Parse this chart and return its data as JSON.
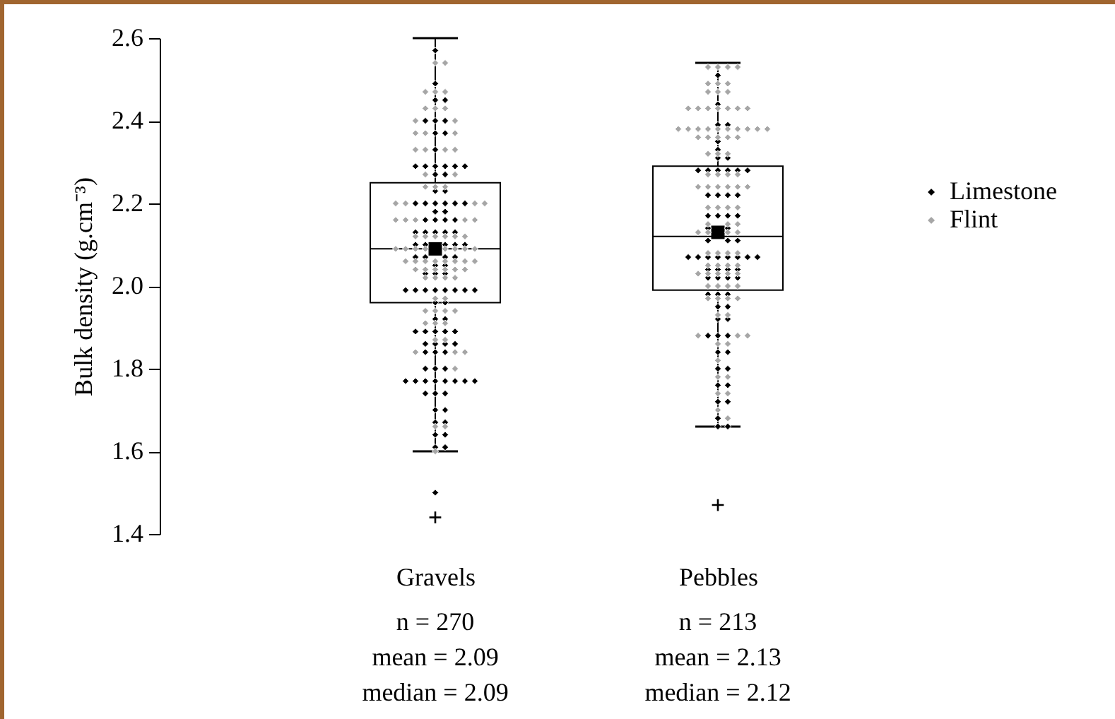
{
  "chart_data": {
    "type": "box",
    "ylabel": "Bulk density (g.cm⁻³)",
    "categories": [
      "Gravels",
      "Pebbles"
    ],
    "boxes": [
      {
        "low": 1.6,
        "q1": 1.96,
        "median": 2.09,
        "q3": 2.25,
        "high": 2.6,
        "mean": 2.09,
        "outliers": [
          1.44
        ]
      },
      {
        "low": 1.66,
        "q1": 1.99,
        "median": 2.12,
        "q3": 2.29,
        "high": 2.54,
        "mean": 2.13,
        "outliers": [
          1.47
        ]
      }
    ],
    "ylim": [
      1.4,
      2.6
    ],
    "yticks": [
      1.4,
      1.6,
      1.8,
      {
        "value": 2,
        "label": "2.0"
      },
      2.2,
      2.4,
      2.6
    ],
    "annotations": [
      "n = 270\nmean = 2.09\nmedian = 2.09",
      "n = 213\nmean = 2.13\nmedian = 2.12"
    ],
    "legend": "right",
    "marker": "diamond",
    "grid": false,
    "series": [
      {
        "name": "Limestone",
        "type": "scatter",
        "color": "#000000",
        "x": [
          "Gravels",
          "Gravels",
          "Gravels",
          "Gravels",
          "Gravels",
          "Gravels",
          "Gravels",
          "Gravels",
          "Gravels",
          "Gravels",
          "Gravels",
          "Gravels",
          "Gravels",
          "Gravels",
          "Gravels",
          "Gravels",
          "Gravels",
          "Gravels",
          "Gravels",
          "Gravels",
          "Gravels",
          "Gravels",
          "Gravels",
          "Gravels",
          "Gravels",
          "Gravels",
          "Gravels",
          "Gravels",
          "Gravels",
          "Gravels",
          "Gravels",
          "Gravels",
          "Gravels",
          "Gravels",
          "Gravels",
          "Gravels",
          "Gravels",
          "Gravels",
          "Gravels",
          "Gravels",
          "Gravels",
          "Gravels",
          "Gravels",
          "Gravels",
          "Gravels",
          "Gravels",
          "Gravels",
          "Gravels",
          "Gravels",
          "Gravels",
          "Gravels",
          "Gravels",
          "Gravels",
          "Gravels",
          "Gravels",
          "Gravels",
          "Gravels",
          "Gravels",
          "Gravels",
          "Gravels",
          "Gravels",
          "Gravels",
          "Gravels",
          "Gravels",
          "Gravels",
          "Gravels",
          "Gravels",
          "Gravels",
          "Gravels",
          "Gravels",
          "Gravels",
          "Gravels",
          "Gravels",
          "Gravels",
          "Gravels",
          "Gravels",
          "Gravels",
          "Gravels",
          "Gravels",
          "Gravels",
          "Gravels",
          "Gravels",
          "Gravels",
          "Gravels",
          "Gravels",
          "Gravels",
          "Gravels",
          "Gravels",
          "Gravels",
          "Gravels",
          "Gravels",
          "Gravels",
          "Gravels",
          "Gravels",
          "Gravels",
          "Gravels",
          "Gravels",
          "Gravels",
          "Pebbles",
          "Pebbles",
          "Pebbles",
          "Pebbles",
          "Pebbles",
          "Pebbles",
          "Pebbles",
          "Pebbles",
          "Pebbles",
          "Pebbles",
          "Pebbles",
          "Pebbles",
          "Pebbles",
          "Pebbles",
          "Pebbles",
          "Pebbles",
          "Pebbles",
          "Pebbles",
          "Pebbles",
          "Pebbles",
          "Pebbles",
          "Pebbles",
          "Pebbles",
          "Pebbles",
          "Pebbles",
          "Pebbles",
          "Pebbles",
          "Pebbles",
          "Pebbles",
          "Pebbles",
          "Pebbles",
          "Pebbles",
          "Pebbles",
          "Pebbles",
          "Pebbles",
          "Pebbles",
          "Pebbles",
          "Pebbles",
          "Pebbles",
          "Pebbles",
          "Pebbles",
          "Pebbles",
          "Pebbles",
          "Pebbles",
          "Pebbles",
          "Pebbles",
          "Pebbles",
          "Pebbles",
          "Pebbles",
          "Pebbles",
          "Pebbles",
          "Pebbles",
          "Pebbles",
          "Pebbles",
          "Pebbles",
          "Pebbles",
          "Pebbles",
          "Pebbles",
          "Pebbles",
          "Pebbles",
          "Pebbles",
          "Pebbles",
          "Pebbles",
          "Pebbles"
        ],
        "values": [
          2.57,
          2.49,
          2.45,
          2.45,
          2.4,
          2.4,
          2.4,
          2.37,
          2.37,
          2.33,
          2.29,
          2.29,
          2.29,
          2.29,
          2.29,
          2.29,
          2.27,
          2.27,
          2.23,
          2.23,
          2.2,
          2.2,
          2.2,
          2.2,
          2.2,
          2.2,
          2.18,
          2.18,
          2.16,
          2.16,
          2.16,
          2.16,
          2.13,
          2.13,
          2.13,
          2.13,
          2.13,
          2.1,
          2.1,
          2.1,
          2.1,
          2.1,
          2.07,
          2.07,
          2.07,
          2.07,
          2.05,
          2.05,
          2.03,
          2.03,
          2.03,
          1.99,
          1.99,
          1.99,
          1.99,
          1.99,
          1.99,
          1.99,
          1.99,
          1.96,
          1.96,
          1.92,
          1.92,
          1.89,
          1.89,
          1.89,
          1.89,
          1.89,
          1.86,
          1.86,
          1.86,
          1.86,
          1.84,
          1.84,
          1.84,
          1.8,
          1.8,
          1.8,
          1.77,
          1.77,
          1.77,
          1.77,
          1.77,
          1.77,
          1.77,
          1.77,
          1.74,
          1.74,
          1.74,
          1.7,
          1.7,
          1.67,
          1.67,
          1.64,
          1.64,
          1.61,
          1.61,
          1.5,
          2.51,
          2.44,
          2.39,
          2.39,
          2.35,
          2.33,
          2.31,
          2.31,
          2.28,
          2.28,
          2.28,
          2.28,
          2.28,
          2.28,
          2.22,
          2.22,
          2.22,
          2.22,
          2.17,
          2.17,
          2.17,
          2.17,
          2.14,
          2.14,
          2.11,
          2.11,
          2.11,
          2.07,
          2.07,
          2.07,
          2.07,
          2.07,
          2.07,
          2.07,
          2.07,
          2.04,
          2.04,
          2.04,
          2.04,
          2.02,
          2.02,
          2.02,
          2.02,
          1.98,
          1.98,
          1.98,
          1.95,
          1.95,
          1.92,
          1.92,
          1.88,
          1.88,
          1.88,
          1.84,
          1.84,
          1.8,
          1.8,
          1.76,
          1.76,
          1.72,
          1.72,
          1.68,
          1.66,
          1.66
        ]
      },
      {
        "name": "Flint",
        "type": "scatter",
        "color": "#a6a6a6",
        "x": [
          "Gravels",
          "Gravels",
          "Gravels",
          "Gravels",
          "Gravels",
          "Gravels",
          "Gravels",
          "Gravels",
          "Gravels",
          "Gravels",
          "Gravels",
          "Gravels",
          "Gravels",
          "Gravels",
          "Gravels",
          "Gravels",
          "Gravels",
          "Gravels",
          "Gravels",
          "Gravels",
          "Gravels",
          "Gravels",
          "Gravels",
          "Gravels",
          "Gravels",
          "Gravels",
          "Gravels",
          "Gravels",
          "Gravels",
          "Gravels",
          "Gravels",
          "Gravels",
          "Gravels",
          "Gravels",
          "Gravels",
          "Gravels",
          "Gravels",
          "Gravels",
          "Gravels",
          "Gravels",
          "Gravels",
          "Gravels",
          "Gravels",
          "Gravels",
          "Gravels",
          "Gravels",
          "Gravels",
          "Gravels",
          "Gravels",
          "Gravels",
          "Gravels",
          "Gravels",
          "Gravels",
          "Gravels",
          "Gravels",
          "Gravels",
          "Gravels",
          "Gravels",
          "Gravels",
          "Gravels",
          "Gravels",
          "Gravels",
          "Gravels",
          "Gravels",
          "Gravels",
          "Gravels",
          "Gravels",
          "Gravels",
          "Gravels",
          "Gravels",
          "Gravels",
          "Gravels",
          "Gravels",
          "Gravels",
          "Gravels",
          "Gravels",
          "Gravels",
          "Gravels",
          "Gravels",
          "Gravels",
          "Gravels",
          "Pebbles",
          "Pebbles",
          "Pebbles",
          "Pebbles",
          "Pebbles",
          "Pebbles",
          "Pebbles",
          "Pebbles",
          "Pebbles",
          "Pebbles",
          "Pebbles",
          "Pebbles",
          "Pebbles",
          "Pebbles",
          "Pebbles",
          "Pebbles",
          "Pebbles",
          "Pebbles",
          "Pebbles",
          "Pebbles",
          "Pebbles",
          "Pebbles",
          "Pebbles",
          "Pebbles",
          "Pebbles",
          "Pebbles",
          "Pebbles",
          "Pebbles",
          "Pebbles",
          "Pebbles",
          "Pebbles",
          "Pebbles",
          "Pebbles",
          "Pebbles",
          "Pebbles",
          "Pebbles",
          "Pebbles",
          "Pebbles",
          "Pebbles",
          "Pebbles",
          "Pebbles",
          "Pebbles",
          "Pebbles",
          "Pebbles",
          "Pebbles",
          "Pebbles",
          "Pebbles",
          "Pebbles",
          "Pebbles",
          "Pebbles",
          "Pebbles",
          "Pebbles",
          "Pebbles",
          "Pebbles",
          "Pebbles",
          "Pebbles",
          "Pebbles",
          "Pebbles",
          "Pebbles",
          "Pebbles",
          "Pebbles",
          "Pebbles",
          "Pebbles",
          "Pebbles",
          "Pebbles",
          "Pebbles",
          "Pebbles",
          "Pebbles",
          "Pebbles",
          "Pebbles",
          "Pebbles",
          "Pebbles",
          "Pebbles",
          "Pebbles",
          "Pebbles",
          "Pebbles",
          "Pebbles",
          "Pebbles",
          "Pebbles",
          "Pebbles",
          "Pebbles",
          "Pebbles",
          "Pebbles",
          "Pebbles",
          "Pebbles",
          "Pebbles",
          "Pebbles",
          "Pebbles",
          "Pebbles",
          "Pebbles",
          "Pebbles"
        ],
        "values": [
          2.54,
          2.54,
          2.47,
          2.47,
          2.47,
          2.43,
          2.43,
          2.43,
          2.4,
          2.4,
          2.37,
          2.37,
          2.37,
          2.33,
          2.33,
          2.33,
          2.33,
          2.27,
          2.27,
          2.24,
          2.24,
          2.24,
          2.2,
          2.2,
          2.2,
          2.2,
          2.16,
          2.16,
          2.16,
          2.16,
          2.16,
          2.12,
          2.12,
          2.12,
          2.12,
          2.12,
          2.12,
          2.09,
          2.09,
          2.09,
          2.09,
          2.09,
          2.09,
          2.09,
          2.09,
          2.06,
          2.06,
          2.06,
          2.06,
          2.06,
          2.06,
          2.06,
          2.06,
          2.04,
          2.04,
          2.04,
          2.04,
          2.04,
          2.04,
          2.02,
          2.02,
          2.02,
          2.02,
          1.97,
          1.97,
          1.94,
          1.94,
          1.94,
          1.94,
          1.91,
          1.91,
          1.91,
          1.87,
          1.87,
          1.84,
          1.84,
          1.84,
          1.8,
          1.66,
          1.66,
          1.6,
          2.53,
          2.53,
          2.53,
          2.53,
          2.49,
          2.49,
          2.49,
          2.47,
          2.47,
          2.47,
          2.43,
          2.43,
          2.43,
          2.43,
          2.43,
          2.43,
          2.43,
          2.38,
          2.38,
          2.38,
          2.38,
          2.38,
          2.38,
          2.38,
          2.38,
          2.38,
          2.38,
          2.36,
          2.36,
          2.36,
          2.36,
          2.36,
          2.32,
          2.32,
          2.32,
          2.27,
          2.27,
          2.27,
          2.27,
          2.24,
          2.24,
          2.24,
          2.24,
          2.24,
          2.24,
          2.19,
          2.19,
          2.19,
          2.19,
          2.15,
          2.15,
          2.15,
          2.13,
          2.13,
          2.13,
          2.13,
          2.08,
          2.08,
          2.08,
          2.08,
          2.05,
          2.05,
          2.05,
          2.05,
          2.03,
          2.03,
          2.03,
          2.03,
          2.03,
          2.0,
          2.0,
          2.0,
          2.0,
          1.97,
          1.97,
          1.97,
          1.97,
          1.93,
          1.93,
          1.88,
          1.88,
          1.88,
          1.86,
          1.86,
          1.82,
          1.78,
          1.78,
          1.74,
          1.74,
          1.7,
          1.68
        ]
      }
    ]
  }
}
